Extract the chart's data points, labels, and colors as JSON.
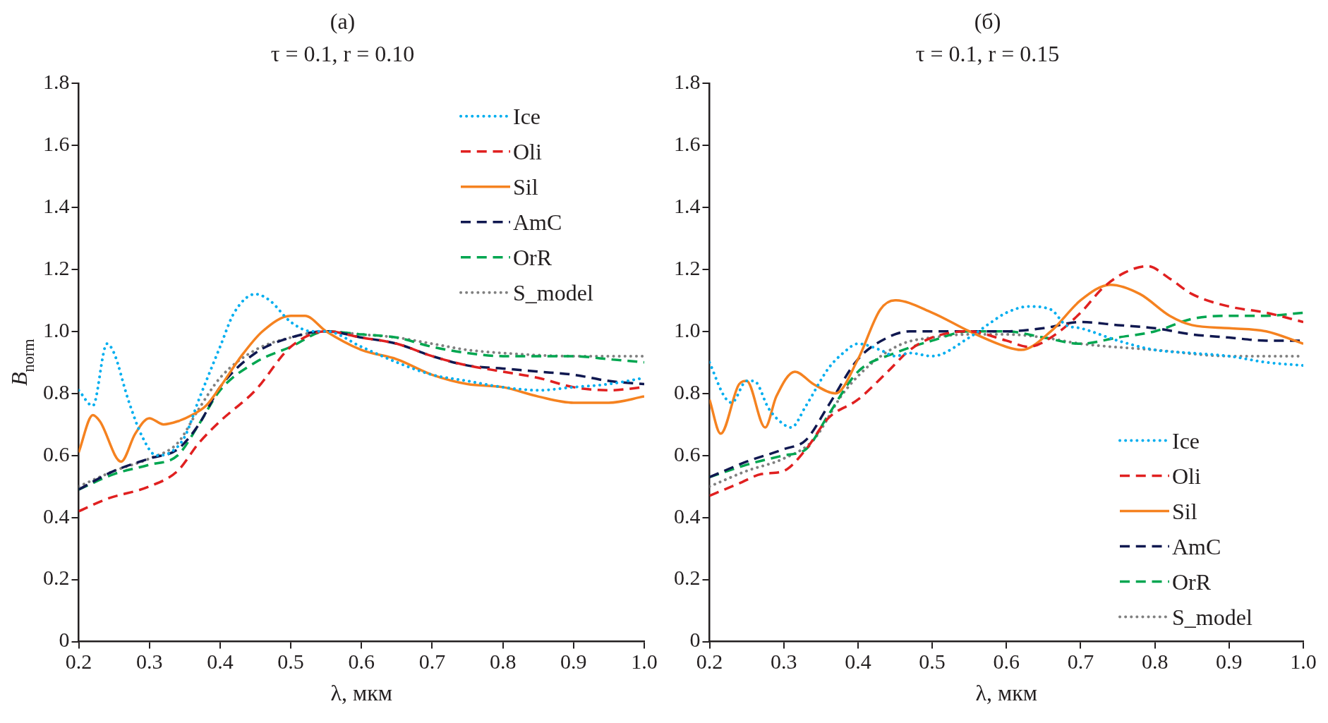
{
  "chart_data": [
    {
      "type": "line",
      "title": "(a)",
      "subtitle": "τ = 0.1, r = 0.10",
      "xlabel": "λ, мкм",
      "ylabel": "B$_{norm}$",
      "xlim": [
        0.2,
        1.0
      ],
      "ylim": [
        0,
        1.8
      ],
      "xticks": [
        0.2,
        0.3,
        0.4,
        0.5,
        0.6,
        0.7,
        0.8,
        0.9,
        {
          "value": 1,
          "label": "1.0"
        }
      ],
      "yticks": [
        0,
        0.2,
        0.4,
        0.6,
        0.8,
        {
          "value": 1,
          "label": "1.0"
        },
        1.2,
        1.4,
        1.6,
        1.8
      ],
      "grid": false,
      "legend": "top right",
      "marker": "none",
      "series": [
        {
          "name": "Ice",
          "color": "#00aeef",
          "line_style": "dotted",
          "x": [
            0.2,
            0.22,
            0.24,
            0.25,
            0.27,
            0.29,
            0.31,
            0.33,
            0.35,
            0.37,
            0.4,
            0.42,
            0.45,
            0.47,
            0.5,
            0.53,
            0.55,
            0.6,
            0.65,
            0.7,
            0.75,
            0.8,
            0.85,
            0.9,
            0.95,
            1.0
          ],
          "values": [
            0.81,
            0.76,
            0.96,
            0.93,
            0.78,
            0.66,
            0.6,
            0.61,
            0.66,
            0.78,
            0.95,
            1.06,
            1.12,
            1.1,
            1.03,
            1.0,
            1.0,
            0.95,
            0.9,
            0.86,
            0.84,
            0.82,
            0.81,
            0.82,
            0.83,
            0.85
          ]
        },
        {
          "name": "Oli",
          "color": "#e02020",
          "line_style": "dashed",
          "x": [
            0.2,
            0.24,
            0.3,
            0.34,
            0.37,
            0.4,
            0.45,
            0.5,
            0.55,
            0.6,
            0.65,
            0.7,
            0.75,
            0.8,
            0.85,
            0.9,
            0.95,
            1.0
          ],
          "values": [
            0.42,
            0.46,
            0.5,
            0.55,
            0.64,
            0.71,
            0.81,
            0.95,
            1.0,
            0.98,
            0.96,
            0.92,
            0.89,
            0.87,
            0.85,
            0.82,
            0.81,
            0.82
          ]
        },
        {
          "name": "Sil",
          "color": "#f58220",
          "line_style": "solid",
          "x": [
            0.2,
            0.22,
            0.23,
            0.26,
            0.28,
            0.3,
            0.32,
            0.34,
            0.36,
            0.38,
            0.4,
            0.43,
            0.46,
            0.5,
            0.52,
            0.55,
            0.6,
            0.65,
            0.7,
            0.75,
            0.8,
            0.85,
            0.9,
            0.95,
            1.0
          ],
          "values": [
            0.61,
            0.73,
            0.71,
            0.58,
            0.67,
            0.72,
            0.7,
            0.71,
            0.73,
            0.76,
            0.82,
            0.92,
            1.0,
            1.05,
            1.05,
            1.0,
            0.94,
            0.91,
            0.86,
            0.83,
            0.82,
            0.79,
            0.77,
            0.77,
            0.79
          ]
        },
        {
          "name": "AmC",
          "color": "#101850",
          "line_style": "dashed",
          "x": [
            0.2,
            0.25,
            0.3,
            0.34,
            0.37,
            0.4,
            0.45,
            0.5,
            0.55,
            0.6,
            0.65,
            0.7,
            0.75,
            0.8,
            0.85,
            0.9,
            0.95,
            1.0
          ],
          "values": [
            0.49,
            0.55,
            0.59,
            0.62,
            0.7,
            0.82,
            0.93,
            0.98,
            1.0,
            0.98,
            0.96,
            0.92,
            0.89,
            0.88,
            0.87,
            0.86,
            0.84,
            0.83
          ]
        },
        {
          "name": "OrR",
          "color": "#00a650",
          "line_style": "dashed",
          "x": [
            0.2,
            0.25,
            0.3,
            0.34,
            0.37,
            0.4,
            0.45,
            0.5,
            0.55,
            0.6,
            0.65,
            0.7,
            0.75,
            0.8,
            0.85,
            0.9,
            0.95,
            1.0
          ],
          "values": [
            0.49,
            0.54,
            0.57,
            0.6,
            0.7,
            0.81,
            0.9,
            0.95,
            1.0,
            0.99,
            0.98,
            0.95,
            0.93,
            0.92,
            0.92,
            0.92,
            0.91,
            0.9
          ]
        },
        {
          "name": "S_model",
          "color": "#808080",
          "line_style": "dotted",
          "x": [
            0.2,
            0.25,
            0.3,
            0.34,
            0.37,
            0.4,
            0.45,
            0.5,
            0.55,
            0.6,
            0.65,
            0.7,
            0.75,
            0.8,
            0.9,
            1.0
          ],
          "values": [
            0.5,
            0.55,
            0.59,
            0.64,
            0.75,
            0.85,
            0.94,
            0.98,
            1.0,
            0.99,
            0.98,
            0.96,
            0.94,
            0.93,
            0.92,
            0.92
          ]
        }
      ]
    },
    {
      "type": "line",
      "title": "(б)",
      "subtitle": "τ = 0.1, r = 0.15",
      "xlabel": "λ, мкм",
      "xlim": [
        0.2,
        1.0
      ],
      "ylim": [
        0,
        1.8
      ],
      "xticks": [
        0.2,
        0.3,
        0.4,
        0.5,
        0.6,
        0.7,
        0.8,
        0.9,
        {
          "value": 1,
          "label": "1.0"
        }
      ],
      "yticks": [
        0,
        0.2,
        0.4,
        0.6,
        0.8,
        {
          "value": 1,
          "label": "1.0"
        },
        1.2,
        1.4,
        1.6,
        1.8
      ],
      "grid": false,
      "legend": "bottom right",
      "marker": "none",
      "series": [
        {
          "name": "Ice",
          "color": "#00aeef",
          "line_style": "dotted",
          "x": [
            0.2,
            0.22,
            0.23,
            0.25,
            0.26,
            0.28,
            0.3,
            0.31,
            0.33,
            0.36,
            0.38,
            0.4,
            0.43,
            0.45,
            0.47,
            0.5,
            0.55,
            0.58,
            0.6,
            0.63,
            0.66,
            0.68,
            0.7,
            0.75,
            0.8,
            0.85,
            0.9,
            0.95,
            1.0
          ],
          "values": [
            0.9,
            0.79,
            0.77,
            0.84,
            0.84,
            0.75,
            0.7,
            0.69,
            0.76,
            0.88,
            0.93,
            0.96,
            0.94,
            0.92,
            0.93,
            0.92,
            0.98,
            1.03,
            1.06,
            1.08,
            1.07,
            1.02,
            1.01,
            0.97,
            0.94,
            0.93,
            0.92,
            0.9,
            0.89
          ]
        },
        {
          "name": "Oli",
          "color": "#e02020",
          "line_style": "dashed",
          "x": [
            0.2,
            0.24,
            0.27,
            0.3,
            0.33,
            0.36,
            0.4,
            0.44,
            0.47,
            0.5,
            0.55,
            0.6,
            0.63,
            0.66,
            0.7,
            0.73,
            0.76,
            0.79,
            0.82,
            0.85,
            0.9,
            0.95,
            1.0
          ],
          "values": [
            0.47,
            0.51,
            0.54,
            0.55,
            0.62,
            0.72,
            0.78,
            0.87,
            0.94,
            0.98,
            1.0,
            0.97,
            0.95,
            0.98,
            1.06,
            1.14,
            1.19,
            1.21,
            1.17,
            1.12,
            1.08,
            1.06,
            1.03
          ]
        },
        {
          "name": "Sil",
          "color": "#f58220",
          "line_style": "solid",
          "x": [
            0.2,
            0.215,
            0.24,
            0.25,
            0.275,
            0.29,
            0.315,
            0.34,
            0.37,
            0.4,
            0.43,
            0.45,
            0.5,
            0.55,
            0.6,
            0.62,
            0.66,
            0.7,
            0.74,
            0.78,
            0.82,
            0.85,
            0.9,
            0.95,
            1.0
          ],
          "values": [
            0.78,
            0.67,
            0.83,
            0.84,
            0.69,
            0.79,
            0.87,
            0.83,
            0.8,
            0.91,
            1.07,
            1.1,
            1.06,
            1.0,
            0.95,
            0.94,
            1.0,
            1.1,
            1.15,
            1.12,
            1.05,
            1.02,
            1.01,
            1.0,
            0.96
          ]
        },
        {
          "name": "AmC",
          "color": "#101850",
          "line_style": "dashed",
          "x": [
            0.2,
            0.25,
            0.3,
            0.33,
            0.36,
            0.4,
            0.44,
            0.47,
            0.5,
            0.55,
            0.6,
            0.65,
            0.7,
            0.75,
            0.8,
            0.85,
            0.9,
            0.95,
            1.0
          ],
          "values": [
            0.53,
            0.58,
            0.62,
            0.65,
            0.76,
            0.91,
            0.98,
            1.0,
            1.0,
            1.0,
            1.0,
            1.01,
            1.03,
            1.02,
            1.01,
            0.99,
            0.98,
            0.97,
            0.97
          ]
        },
        {
          "name": "OrR",
          "color": "#00a650",
          "line_style": "dashed",
          "x": [
            0.2,
            0.25,
            0.3,
            0.33,
            0.36,
            0.4,
            0.45,
            0.5,
            0.55,
            0.6,
            0.65,
            0.7,
            0.75,
            0.8,
            0.85,
            0.9,
            0.95,
            1.0
          ],
          "values": [
            0.53,
            0.57,
            0.6,
            0.62,
            0.73,
            0.87,
            0.93,
            0.97,
            1.0,
            1.0,
            0.98,
            0.96,
            0.98,
            1.0,
            1.04,
            1.05,
            1.05,
            1.06
          ]
        },
        {
          "name": "S_model",
          "color": "#808080",
          "line_style": "dotted",
          "x": [
            0.2,
            0.25,
            0.3,
            0.34,
            0.38,
            0.42,
            0.46,
            0.5,
            0.55,
            0.6,
            0.65,
            0.7,
            0.8,
            0.9,
            1.0
          ],
          "values": [
            0.5,
            0.55,
            0.59,
            0.65,
            0.8,
            0.9,
            0.96,
            0.98,
            0.99,
            0.99,
            0.98,
            0.96,
            0.94,
            0.92,
            0.92
          ]
        }
      ]
    }
  ]
}
